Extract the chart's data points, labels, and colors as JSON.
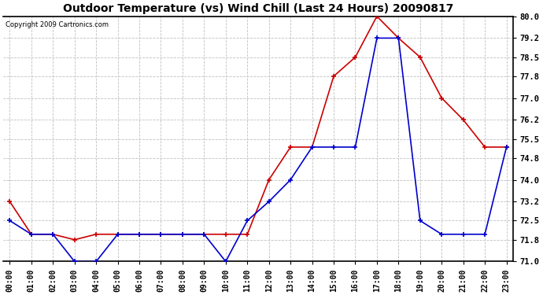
{
  "title": "Outdoor Temperature (vs) Wind Chill (Last 24 Hours) 20090817",
  "copyright": "Copyright 2009 Cartronics.com",
  "x_labels": [
    "00:00",
    "01:00",
    "02:00",
    "03:00",
    "04:00",
    "05:00",
    "06:00",
    "07:00",
    "08:00",
    "09:00",
    "10:00",
    "11:00",
    "12:00",
    "13:00",
    "14:00",
    "15:00",
    "16:00",
    "17:00",
    "18:00",
    "19:00",
    "20:00",
    "21:00",
    "22:00",
    "23:00"
  ],
  "temp_red": [
    73.2,
    72.0,
    72.0,
    71.8,
    72.0,
    72.0,
    72.0,
    72.0,
    72.0,
    72.0,
    72.0,
    72.0,
    74.0,
    75.2,
    75.2,
    77.8,
    78.5,
    80.0,
    79.2,
    78.5,
    77.0,
    76.2,
    75.2,
    75.2
  ],
  "temp_blue": [
    72.5,
    72.0,
    72.0,
    71.0,
    71.0,
    72.0,
    72.0,
    72.0,
    72.0,
    72.0,
    71.0,
    72.5,
    73.2,
    74.0,
    75.2,
    75.2,
    75.2,
    79.2,
    79.2,
    72.5,
    72.0,
    72.0,
    72.0,
    75.2
  ],
  "ylim_min": 71.0,
  "ylim_max": 80.0,
  "yticks": [
    71.0,
    71.8,
    72.5,
    73.2,
    74.0,
    74.8,
    75.5,
    76.2,
    77.0,
    77.8,
    78.5,
    79.2,
    80.0
  ],
  "red_color": "#cc0000",
  "blue_color": "#0000cc",
  "background_color": "#ffffff",
  "plot_bg_color": "#ffffff",
  "grid_color": "#c0c0c0"
}
